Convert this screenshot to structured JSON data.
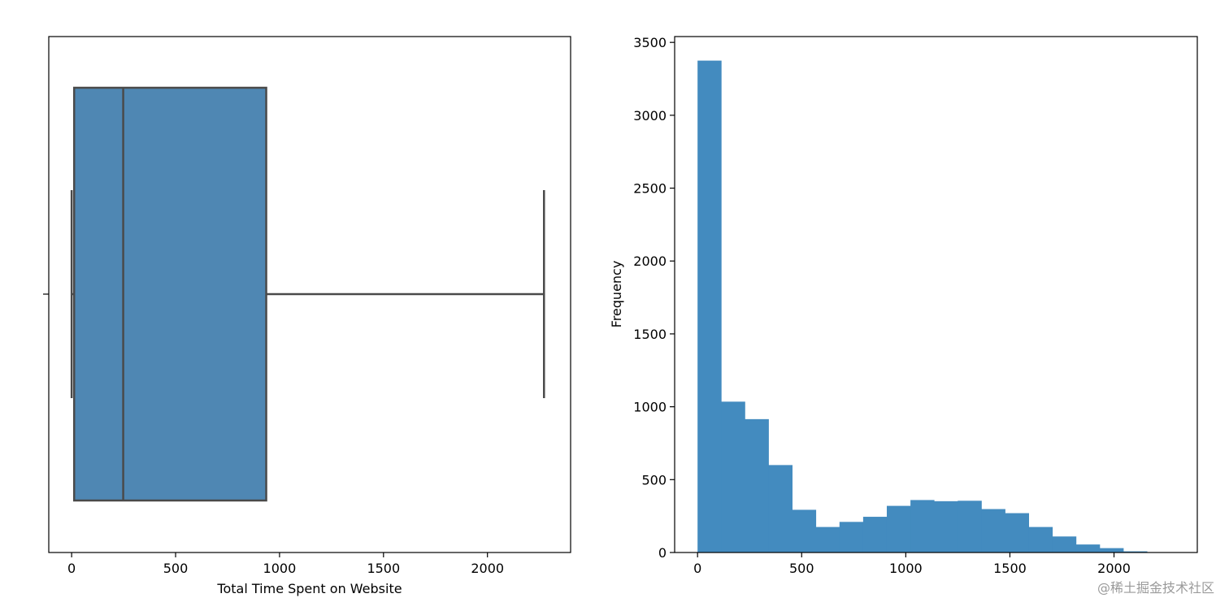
{
  "chart_data": [
    {
      "type": "box",
      "xlabel": "Total Time Spent on Website",
      "ylabel": "",
      "xlim": [
        -110,
        2400
      ],
      "xticks": [
        0,
        500,
        1000,
        1500,
        2000
      ],
      "box": {
        "whisker_low": 0,
        "q1": 12,
        "median": 248,
        "q3": 936,
        "whisker_high": 2272
      },
      "colors": {
        "box_fill": "#4f87b3",
        "box_line": "#4a4a4a"
      }
    },
    {
      "type": "bar",
      "xlabel": "",
      "ylabel": "Frequency",
      "xlim": [
        -110,
        2400
      ],
      "ylim": [
        0,
        3540
      ],
      "xticks": [
        0,
        500,
        1000,
        1500,
        2000
      ],
      "yticks": [
        0,
        500,
        1000,
        1500,
        2000,
        2500,
        3000,
        3500
      ],
      "bin_width": 113.6,
      "bin_starts": [
        0,
        113.6,
        227.2,
        340.8,
        454.4,
        568.0,
        681.6,
        795.2,
        908.8,
        1022.4,
        1136.0,
        1249.6,
        1363.2,
        1476.8,
        1590.4,
        1704.0,
        1817.6,
        1931.2,
        2044.8,
        2158.4
      ],
      "values": [
        3375,
        1035,
        915,
        600,
        293,
        175,
        210,
        245,
        320,
        360,
        352,
        355,
        298,
        270,
        175,
        110,
        55,
        30,
        8,
        2
      ],
      "colors": {
        "bar_fill": "#438bbf"
      }
    }
  ],
  "watermark": "@稀土掘金技术社区"
}
